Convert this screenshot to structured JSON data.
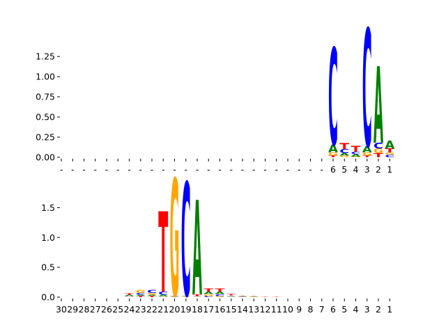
{
  "colors": {
    "A": "#008000",
    "C": "#0000ff",
    "G": "#ffa500",
    "T": "#ff0000"
  },
  "chart_data": [
    {
      "type": "sequence-logo",
      "title": "",
      "xlabel": "",
      "ylabel": "",
      "ylim": [
        0,
        1.45
      ],
      "yticks": [
        "0.00",
        "0.25",
        "0.50",
        "0.75",
        "1.00",
        "1.25"
      ],
      "ytick_values": [
        0,
        0.25,
        0.5,
        0.75,
        1.0,
        1.25
      ],
      "x_tick_labels": [
        "-",
        "-",
        "-",
        "-",
        "-",
        "-",
        "-",
        "-",
        "-",
        "-",
        "-",
        "-",
        "-",
        "-",
        "-",
        "-",
        "-",
        "-",
        "-",
        "-",
        "-",
        "-",
        "-",
        "-",
        "6",
        "5",
        "4",
        "3",
        "2",
        "1"
      ],
      "columns": [
        {},
        {},
        {},
        {},
        {},
        {},
        {},
        {},
        {},
        {},
        {},
        {},
        {},
        {},
        {},
        {},
        {},
        {},
        {},
        {},
        {},
        {},
        {},
        {},
        {
          "T": 0.02,
          "G": 0.04,
          "A": 0.1,
          "C": 1.2
        },
        {
          "G": 0.02,
          "A": 0.03,
          "C": 0.05,
          "T": 0.08
        },
        {
          "G": 0.01,
          "A": 0.03,
          "C": 0.03,
          "T": 0.07
        },
        {
          "T": 0.02,
          "G": 0.04,
          "A": 0.08,
          "C": 1.46
        },
        {
          "T": 0.05,
          "G": 0.06,
          "C": 0.07,
          "A": 0.95
        },
        {
          "C": 0.03,
          "G": 0.03,
          "T": 0.05,
          "A": 0.1
        }
      ]
    },
    {
      "type": "sequence-logo",
      "title": "",
      "xlabel": "",
      "ylabel": "",
      "ylim": [
        0,
        1.96
      ],
      "yticks": [
        "0.0",
        "0.5",
        "1.0",
        "1.5"
      ],
      "ytick_values": [
        0,
        0.5,
        1.0,
        1.5
      ],
      "x_tick_labels": [
        "30",
        "29",
        "28",
        "27",
        "26",
        "25",
        "24",
        "23",
        "22",
        "21",
        "20",
        "19",
        "18",
        "17",
        "16",
        "15",
        "14",
        "13",
        "12",
        "11",
        "10",
        "9",
        "8",
        "7",
        "6",
        "5",
        "4",
        "3",
        "2",
        "1"
      ],
      "columns": [
        {},
        {},
        {},
        {},
        {},
        {},
        {
          "G": 0.01,
          "C": 0.01,
          "A": 0.02,
          "T": 0.02
        },
        {
          "T": 0.02,
          "A": 0.02,
          "C": 0.03,
          "G": 0.05
        },
        {
          "T": 0.02,
          "A": 0.02,
          "G": 0.03,
          "C": 0.05
        },
        {
          "G": 0.01,
          "A": 0.03,
          "C": 0.05,
          "T": 1.35
        },
        {
          "A": 0.01,
          "T": 0.01,
          "C": 0.01,
          "G": 1.96
        },
        {
          "G": 0.01,
          "A": 0.01,
          "T": 0.01,
          "C": 1.9
        },
        {
          "G": 0.01,
          "C": 0.01,
          "T": 0.03,
          "A": 1.58
        },
        {
          "C": 0.02,
          "G": 0.03,
          "A": 0.04,
          "T": 0.06
        },
        {
          "G": 0.02,
          "C": 0.03,
          "A": 0.04,
          "T": 0.06
        },
        {
          "A": 0.01,
          "G": 0.01,
          "C": 0.01,
          "T": 0.02
        },
        {
          "C": 0.005,
          "G": 0.005,
          "A": 0.01,
          "T": 0.01
        },
        {
          "A": 0.005,
          "G": 0.005,
          "T": 0.01
        },
        {
          "T": 0.008
        },
        {
          "T": 0.005
        },
        {},
        {},
        {},
        {
          "T": 0.003
        },
        {},
        {},
        {},
        {},
        {},
        {}
      ]
    }
  ]
}
